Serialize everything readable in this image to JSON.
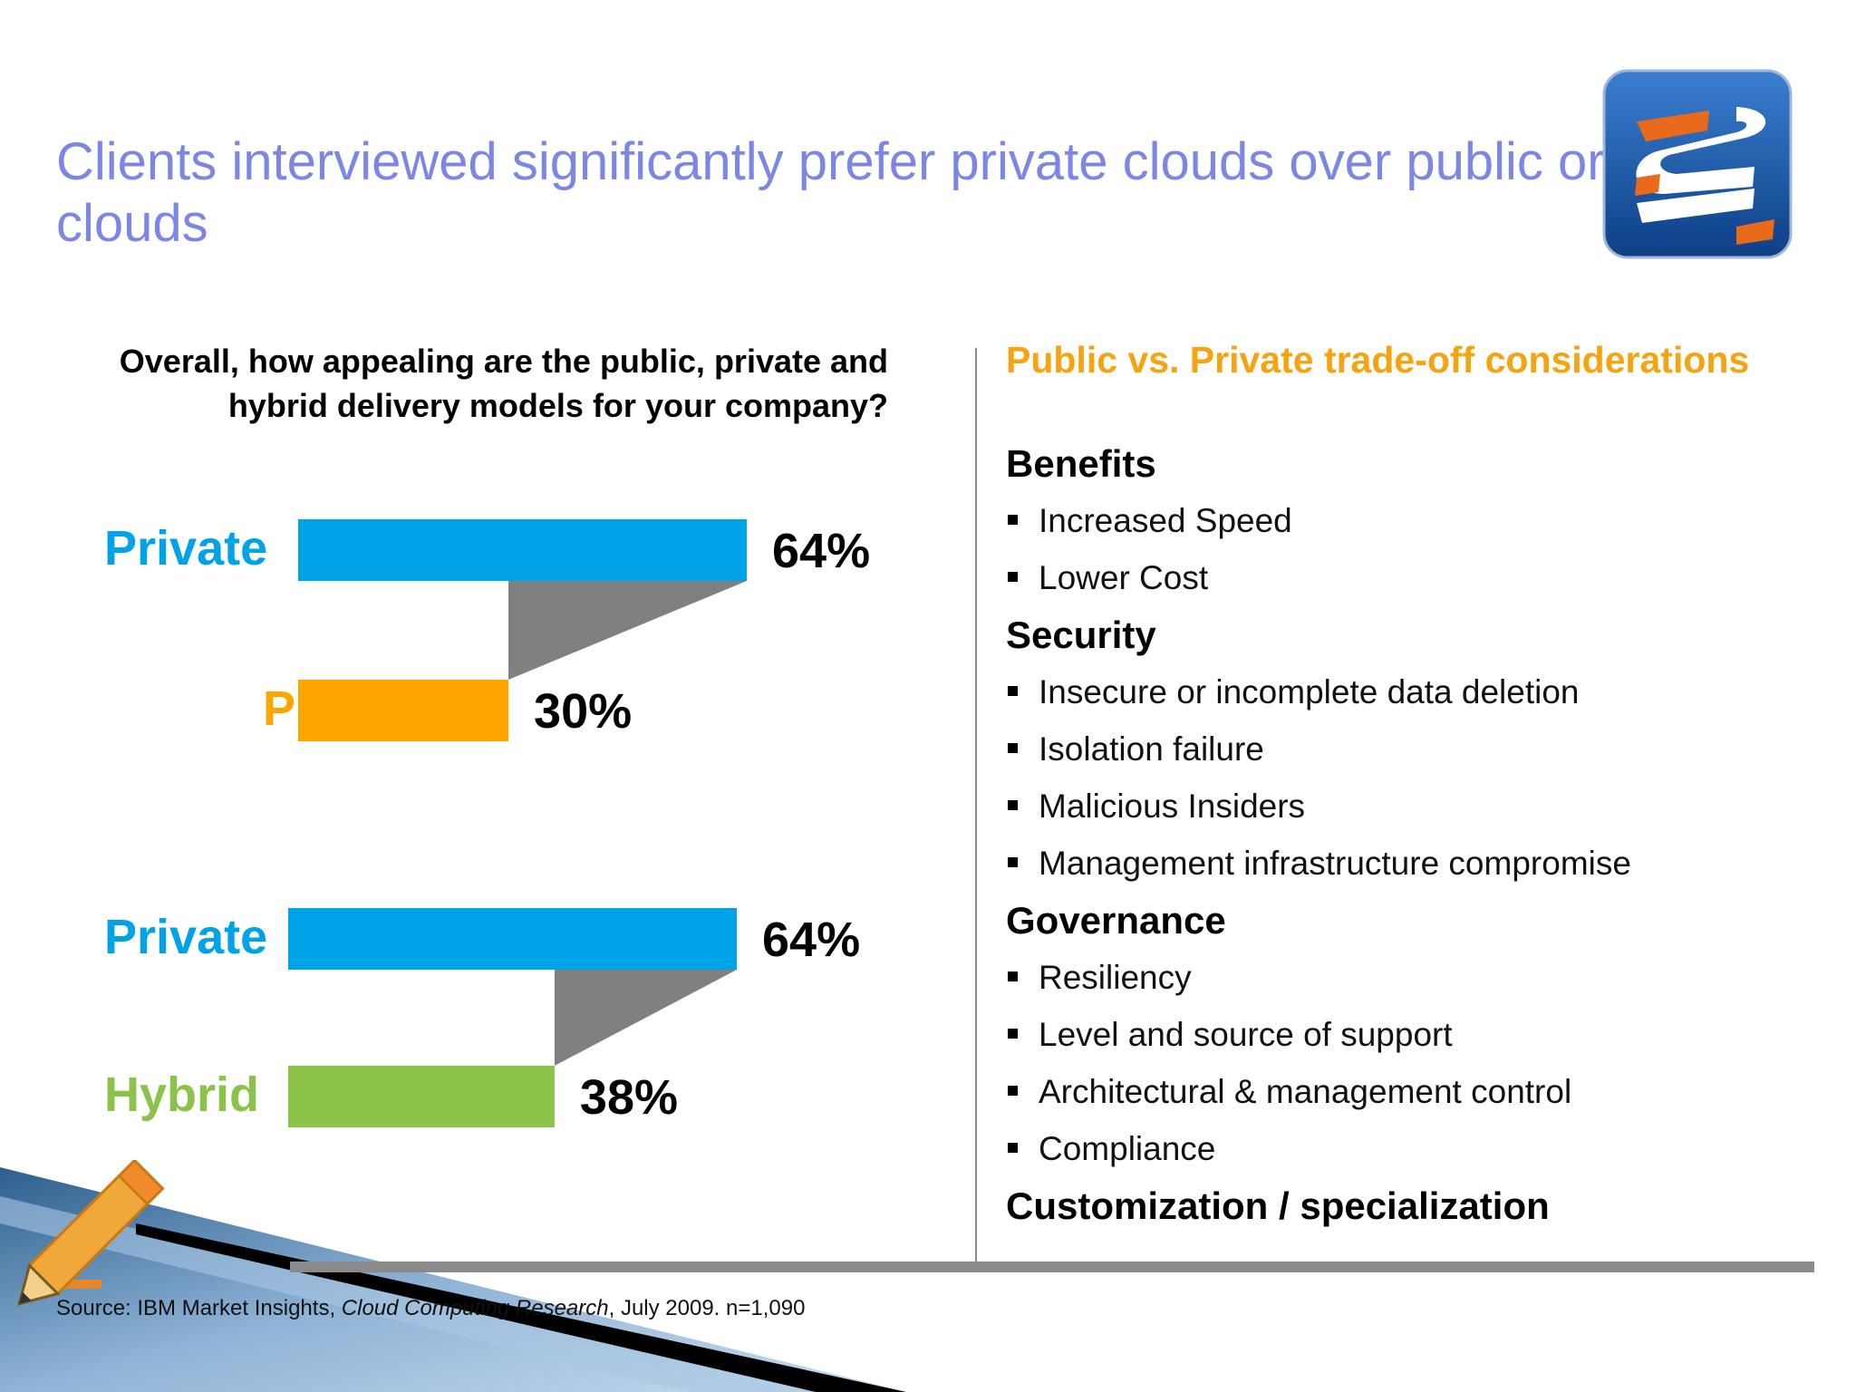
{
  "title": "Clients interviewed significantly prefer private clouds over public or hybrid clouds",
  "logo_icon": "stylized-s-logo-icon",
  "chart_question": "Overall, how appealing are the public, private and hybrid delivery models for your company?",
  "chart_data": {
    "type": "bar",
    "orientation": "horizontal",
    "title": "Overall, how appealing are the public, private and hybrid delivery models for your company?",
    "unit": "%",
    "xlim": [
      0,
      64
    ],
    "comparisons": [
      {
        "bars": [
          {
            "label": "Private",
            "value": 64,
            "value_label": "64%",
            "color": "#00a2e8"
          },
          {
            "label": "Public",
            "value": 30,
            "value_label": "30%",
            "color": "#ffa500"
          }
        ]
      },
      {
        "bars": [
          {
            "label": "Private",
            "value": 64,
            "value_label": "64%",
            "color": "#00a2e8"
          },
          {
            "label": "Hybrid",
            "value": 38,
            "value_label": "38%",
            "color": "#8bc34a"
          }
        ]
      }
    ],
    "connector_color": "#808080"
  },
  "considerations": {
    "heading": "Public vs. Private trade-off considerations",
    "sections": [
      {
        "title": "Benefits",
        "items": [
          "Increased Speed",
          "Lower Cost"
        ]
      },
      {
        "title": "Security",
        "items": [
          "Insecure or incomplete data deletion",
          "Isolation failure",
          "Malicious Insiders",
          "Management infrastructure compromise"
        ]
      },
      {
        "title": "Governance",
        "items": [
          "Resiliency",
          "Level and source of support",
          "Architectural  & management control",
          "Compliance"
        ]
      },
      {
        "title": "Customization / specialization",
        "items": []
      }
    ]
  },
  "source": {
    "prefix": "Source: IBM Market Insights, ",
    "italic": "Cloud Computing Research",
    "suffix": ", July 2009. n=1,090"
  },
  "decor_icon": "pencil-icon",
  "colors": {
    "title": "#7b86e6",
    "accent_orange": "#f5a30f",
    "private_blue": "#00a2e8",
    "public_orange": "#ffa500",
    "hybrid_green": "#8bc34a"
  }
}
